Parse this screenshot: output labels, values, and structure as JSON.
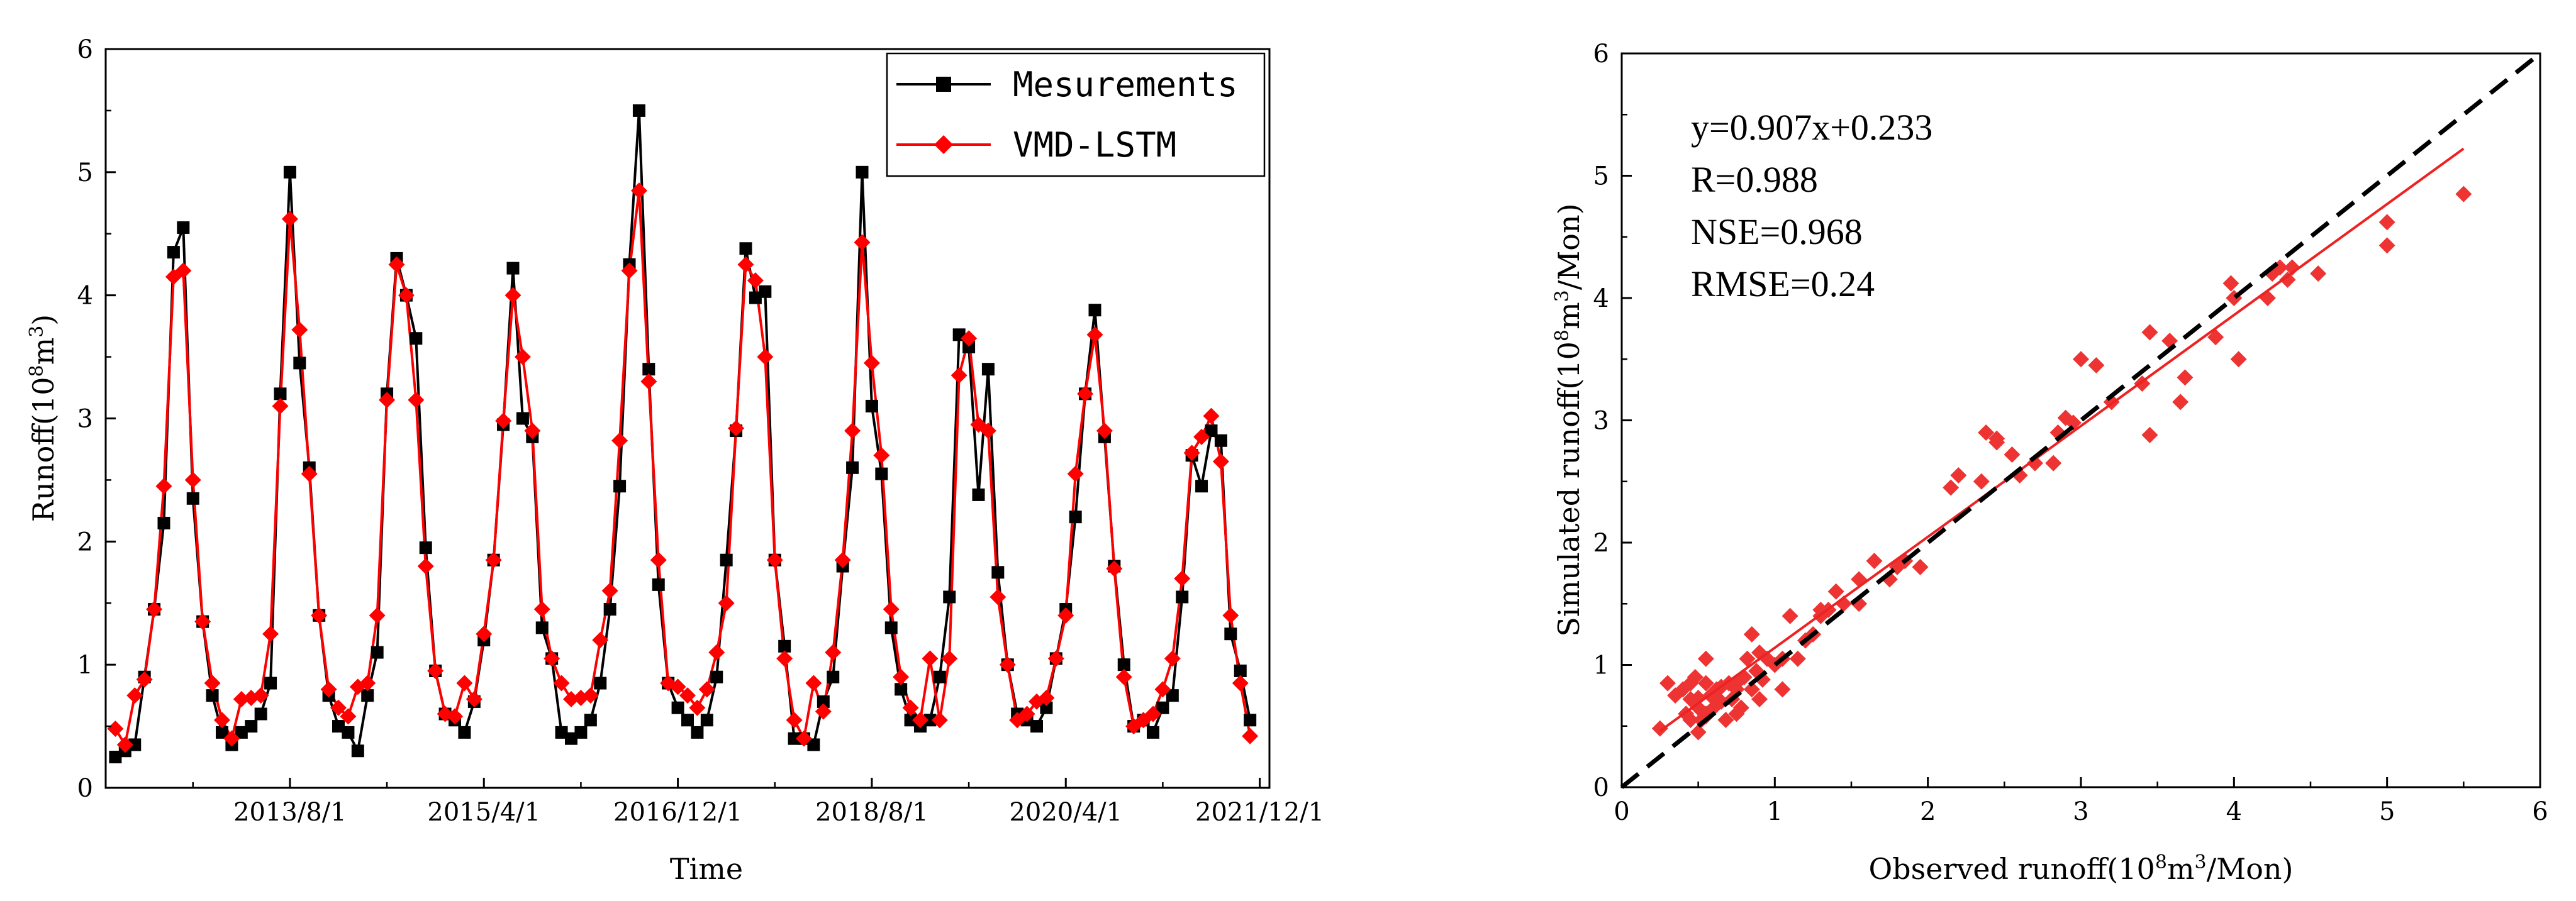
{
  "chart_data": [
    {
      "type": "line",
      "ylabel_main": "Runoff",
      "ylabel_unit": "(10",
      "ylabel_exp": "8",
      "ylabel_unit2": "m",
      "ylabel_exp2": "3",
      "ylabel_close": ")",
      "xlabel": "Time",
      "ylim": [
        0,
        6
      ],
      "yticks": [
        "0",
        "1",
        "2",
        "3",
        "4",
        "5",
        "6"
      ],
      "xlim": [
        0,
        120
      ],
      "xticks": [
        {
          "label": "2013/8/1",
          "x": 19
        },
        {
          "label": "2015/4/1",
          "x": 39
        },
        {
          "label": "2016/12/1",
          "x": 59
        },
        {
          "label": "2018/8/1",
          "x": 79
        },
        {
          "label": "2020/4/1",
          "x": 99
        },
        {
          "label": "2021/12/1",
          "x": 119
        }
      ],
      "legend_position": "top-right",
      "series": [
        {
          "name": "Mesurements",
          "color": "#000000",
          "marker": "square",
          "values": [
            0.25,
            0.3,
            0.35,
            0.9,
            1.45,
            2.15,
            4.35,
            4.55,
            2.35,
            1.35,
            0.75,
            0.45,
            0.35,
            0.45,
            0.5,
            0.6,
            0.85,
            3.2,
            5.0,
            3.45,
            2.6,
            1.4,
            0.75,
            0.5,
            0.45,
            0.3,
            0.75,
            1.1,
            3.2,
            4.3,
            4.0,
            3.65,
            1.95,
            0.95,
            0.6,
            0.55,
            0.45,
            0.7,
            1.2,
            1.85,
            2.95,
            4.22,
            3.0,
            2.85,
            1.3,
            1.05,
            0.45,
            0.4,
            0.45,
            0.55,
            0.85,
            1.45,
            2.45,
            4.25,
            5.5,
            3.4,
            1.65,
            0.85,
            0.65,
            0.55,
            0.45,
            0.55,
            0.9,
            1.85,
            2.9,
            4.38,
            3.98,
            4.03,
            1.85,
            1.15,
            0.4,
            0.4,
            0.35,
            0.7,
            0.9,
            1.8,
            2.6,
            5.0,
            3.1,
            2.55,
            1.3,
            0.8,
            0.55,
            0.5,
            0.55,
            0.9,
            1.55,
            3.68,
            3.58,
            2.38,
            3.4,
            1.75,
            1.0,
            0.6,
            0.55,
            0.5,
            0.65,
            1.05,
            1.45,
            2.2,
            3.2,
            3.88,
            2.85,
            1.8,
            1.0,
            0.5,
            0.55,
            0.45,
            0.65,
            0.75,
            1.55,
            2.7,
            2.45,
            2.9,
            2.82,
            1.25,
            0.95,
            0.55
          ]
        },
        {
          "name": "VMD-LSTM",
          "color": "#ff0000",
          "marker": "diamond",
          "values": [
            0.48,
            0.35,
            0.75,
            0.88,
            1.45,
            2.45,
            4.15,
            4.2,
            2.5,
            1.35,
            0.85,
            0.55,
            0.4,
            0.72,
            0.73,
            0.75,
            1.25,
            3.1,
            4.62,
            3.72,
            2.55,
            1.4,
            0.8,
            0.65,
            0.58,
            0.82,
            0.85,
            1.4,
            3.15,
            4.25,
            4.0,
            3.15,
            1.8,
            0.95,
            0.6,
            0.58,
            0.85,
            0.72,
            1.25,
            1.85,
            2.98,
            4.0,
            3.5,
            2.9,
            1.45,
            1.05,
            0.85,
            0.72,
            0.73,
            0.75,
            1.2,
            1.6,
            2.82,
            4.2,
            4.85,
            3.3,
            1.85,
            0.85,
            0.82,
            0.75,
            0.65,
            0.8,
            1.1,
            1.5,
            2.92,
            4.25,
            4.12,
            3.5,
            1.85,
            1.05,
            0.55,
            0.4,
            0.85,
            0.62,
            1.1,
            1.85,
            2.9,
            4.43,
            3.45,
            2.7,
            1.45,
            0.9,
            0.65,
            0.55,
            1.05,
            0.55,
            1.05,
            3.35,
            3.65,
            2.95,
            2.9,
            1.55,
            1.0,
            0.55,
            0.6,
            0.7,
            0.73,
            1.05,
            1.4,
            2.55,
            3.2,
            3.68,
            2.9,
            1.78,
            0.9,
            0.5,
            0.55,
            0.6,
            0.8,
            1.05,
            1.7,
            2.72,
            2.85,
            3.02,
            2.65,
            1.4,
            0.85,
            0.42
          ]
        }
      ]
    },
    {
      "type": "scatter",
      "xlabel_main": "Observed runoff",
      "xlabel_unit": "(10",
      "xlabel_exp": "8",
      "xlabel_unit2": "m",
      "xlabel_exp2": "3",
      "xlabel_close": "/Mon)",
      "ylabel_main": "Simulated runoff",
      "ylabel_unit": "(10",
      "ylabel_exp": "8",
      "ylabel_unit2": "m",
      "ylabel_exp2": "3",
      "ylabel_close": "/Mon)",
      "xlim": [
        0,
        6
      ],
      "ylim": [
        0,
        6
      ],
      "xticks": [
        "0",
        "1",
        "2",
        "3",
        "4",
        "5",
        "6"
      ],
      "yticks": [
        "0",
        "1",
        "2",
        "3",
        "4",
        "5",
        "6"
      ],
      "point_color": "#ee3333",
      "fit_line": {
        "slope": 0.907,
        "intercept": 0.233,
        "x_range": [
          0.25,
          5.5
        ],
        "color": "#ee2222"
      },
      "identity_line": {
        "x_range": [
          0,
          6
        ],
        "color": "#000000",
        "style": "dashed"
      },
      "annotations": [
        "y=0.907x+0.233",
        "R=0.988",
        "NSE=0.968",
        "RMSE=0.24"
      ],
      "points": [
        [
          0.25,
          0.48
        ],
        [
          0.3,
          0.85
        ],
        [
          0.35,
          0.75
        ],
        [
          0.4,
          0.8
        ],
        [
          0.42,
          0.6
        ],
        [
          0.45,
          0.55
        ],
        [
          0.45,
          0.72
        ],
        [
          0.45,
          0.85
        ],
        [
          0.48,
          0.9
        ],
        [
          0.5,
          0.45
        ],
        [
          0.5,
          0.65
        ],
        [
          0.5,
          0.73
        ],
        [
          0.52,
          0.55
        ],
        [
          0.55,
          0.6
        ],
        [
          0.55,
          0.58
        ],
        [
          0.55,
          0.85
        ],
        [
          0.55,
          1.05
        ],
        [
          0.58,
          0.75
        ],
        [
          0.6,
          0.75
        ],
        [
          0.6,
          0.65
        ],
        [
          0.62,
          0.8
        ],
        [
          0.65,
          0.7
        ],
        [
          0.65,
          0.82
        ],
        [
          0.68,
          0.55
        ],
        [
          0.7,
          0.85
        ],
        [
          0.72,
          0.72
        ],
        [
          0.75,
          0.85
        ],
        [
          0.75,
          0.6
        ],
        [
          0.75,
          0.8
        ],
        [
          0.78,
          0.65
        ],
        [
          0.8,
          0.9
        ],
        [
          0.82,
          1.05
        ],
        [
          0.85,
          1.25
        ],
        [
          0.85,
          0.8
        ],
        [
          0.88,
          0.95
        ],
        [
          0.9,
          1.1
        ],
        [
          0.9,
          0.72
        ],
        [
          0.92,
          0.88
        ],
        [
          0.95,
          1.05
        ],
        [
          1.0,
          1.0
        ],
        [
          1.05,
          1.05
        ],
        [
          1.05,
          0.8
        ],
        [
          1.1,
          1.4
        ],
        [
          1.15,
          1.05
        ],
        [
          1.2,
          1.2
        ],
        [
          1.25,
          1.25
        ],
        [
          1.3,
          1.45
        ],
        [
          1.3,
          1.4
        ],
        [
          1.35,
          1.45
        ],
        [
          1.4,
          1.6
        ],
        [
          1.45,
          1.5
        ],
        [
          1.55,
          1.7
        ],
        [
          1.55,
          1.5
        ],
        [
          1.65,
          1.85
        ],
        [
          1.75,
          1.7
        ],
        [
          1.8,
          1.8
        ],
        [
          1.85,
          1.85
        ],
        [
          1.85,
          1.85
        ],
        [
          1.95,
          1.8
        ],
        [
          2.15,
          2.45
        ],
        [
          2.2,
          2.55
        ],
        [
          2.35,
          2.5
        ],
        [
          2.38,
          2.9
        ],
        [
          2.45,
          2.82
        ],
        [
          2.45,
          2.85
        ],
        [
          2.55,
          2.72
        ],
        [
          2.6,
          2.55
        ],
        [
          2.7,
          2.65
        ],
        [
          2.82,
          2.65
        ],
        [
          2.85,
          2.9
        ],
        [
          2.9,
          3.02
        ],
        [
          2.95,
          2.98
        ],
        [
          3.0,
          3.5
        ],
        [
          3.1,
          3.45
        ],
        [
          3.2,
          3.15
        ],
        [
          3.4,
          3.3
        ],
        [
          3.45,
          3.72
        ],
        [
          3.45,
          2.88
        ],
        [
          3.58,
          3.65
        ],
        [
          3.65,
          3.15
        ],
        [
          3.68,
          3.35
        ],
        [
          3.88,
          3.68
        ],
        [
          3.98,
          4.12
        ],
        [
          4.0,
          4.0
        ],
        [
          4.03,
          3.5
        ],
        [
          4.22,
          4.0
        ],
        [
          4.25,
          4.2
        ],
        [
          4.3,
          4.25
        ],
        [
          4.35,
          4.15
        ],
        [
          4.38,
          4.25
        ],
        [
          4.55,
          4.2
        ],
        [
          5.0,
          4.62
        ],
        [
          5.0,
          4.43
        ],
        [
          5.5,
          4.85
        ]
      ]
    }
  ]
}
